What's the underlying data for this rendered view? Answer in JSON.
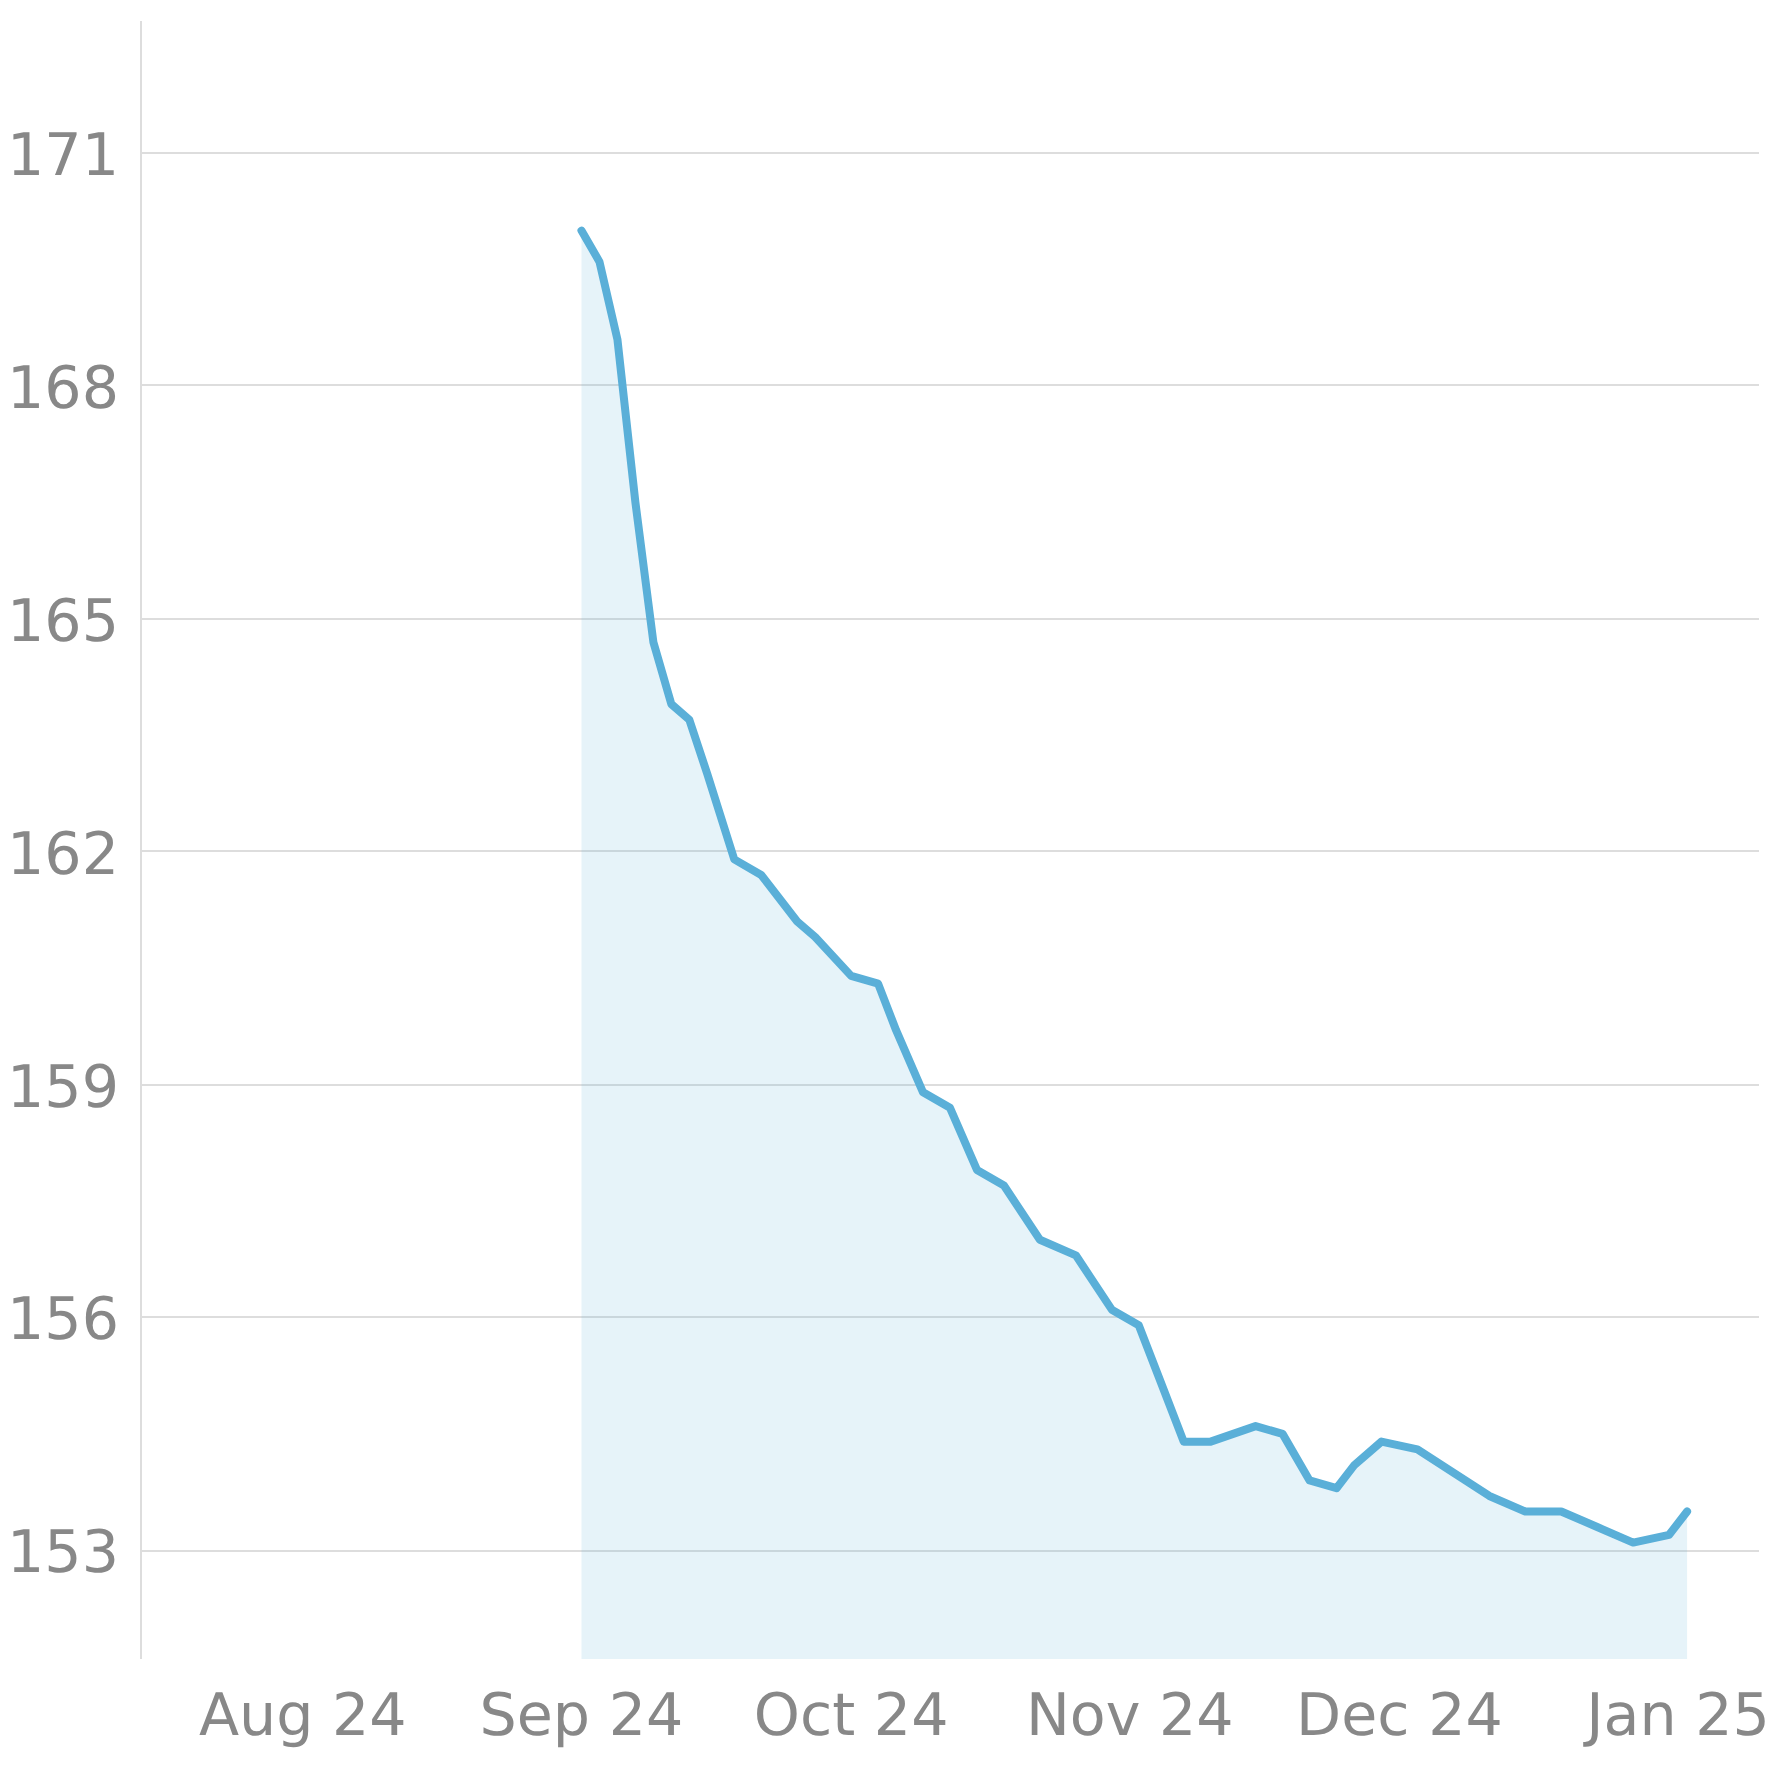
{
  "chart_data": {
    "type": "area",
    "color": "#5aafd8",
    "x": [
      "2024-09-01",
      "2024-09-03",
      "2024-09-05",
      "2024-09-07",
      "2024-09-09",
      "2024-09-11",
      "2024-09-13",
      "2024-09-15",
      "2024-09-18",
      "2024-09-21",
      "2024-09-25",
      "2024-09-27",
      "2024-10-01",
      "2024-10-04",
      "2024-10-06",
      "2024-10-09",
      "2024-10-12",
      "2024-10-15",
      "2024-10-18",
      "2024-10-22",
      "2024-10-26",
      "2024-10-30",
      "2024-11-02",
      "2024-11-05",
      "2024-11-07",
      "2024-11-10",
      "2024-11-15",
      "2024-11-18",
      "2024-11-21",
      "2024-11-24",
      "2024-11-26",
      "2024-11-29",
      "2024-12-03",
      "2024-12-07",
      "2024-12-11",
      "2024-12-15",
      "2024-12-19",
      "2024-12-23",
      "2024-12-27",
      "2024-12-31",
      "2025-01-02"
    ],
    "values": [
      170.0,
      169.6,
      168.6,
      166.5,
      164.7,
      163.9,
      163.7,
      163.0,
      161.9,
      161.7,
      161.1,
      160.9,
      160.4,
      160.3,
      159.7,
      158.9,
      158.7,
      157.9,
      157.7,
      157.0,
      156.8,
      156.1,
      155.9,
      155.0,
      154.4,
      154.4,
      154.6,
      154.5,
      153.9,
      153.8,
      154.1,
      154.4,
      154.3,
      154.0,
      153.7,
      153.5,
      153.5,
      153.3,
      153.1,
      153.2,
      153.5
    ],
    "xlim": [
      "2024-07-14",
      "2025-01-10"
    ],
    "xticks": [
      {
        "value": "2024-08-01",
        "label": "Aug 24"
      },
      {
        "value": "2024-09-01",
        "label": "Sep 24"
      },
      {
        "value": "2024-10-01",
        "label": "Oct 24"
      },
      {
        "value": "2024-11-01",
        "label": "Nov 24"
      },
      {
        "value": "2024-12-01",
        "label": "Dec 24"
      },
      {
        "value": "2025-01-01",
        "label": "Jan 25"
      }
    ],
    "ylim": [
      151.6,
      172.7
    ],
    "yticks": [
      153,
      156,
      159,
      162,
      165,
      168,
      171
    ],
    "grid": "y"
  }
}
